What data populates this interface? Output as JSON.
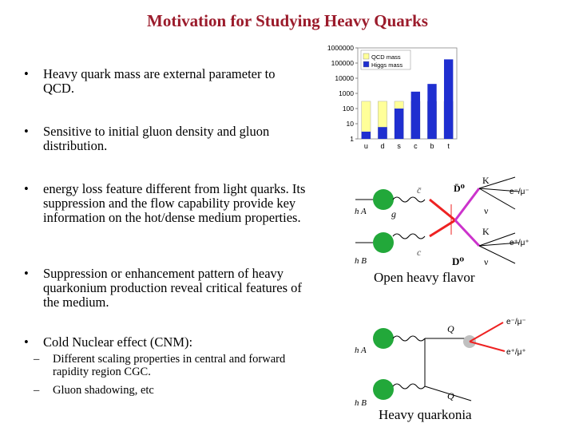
{
  "title": "Motivation for Studying Heavy Quarks",
  "bullets": [
    {
      "text": "Heavy quark mass are external parameter to QCD."
    },
    {
      "text": "Sensitive to initial gluon density and gluon distribution."
    },
    {
      "text": "energy loss feature different from light quarks. Its suppression and the flow capability provide key information on the hot/dense medium properties."
    },
    {
      "text": "Suppression or enhancement pattern of heavy quarkonium production reveal critical features of the medium."
    },
    {
      "text": "Cold Nuclear effect (CNM):"
    }
  ],
  "subbullets": [
    {
      "text": "Different scaling properties in central and forward rapidity region CGC."
    },
    {
      "text": "Gluon shadowing, etc"
    }
  ],
  "chart_data": {
    "type": "bar",
    "categories": [
      "u",
      "d",
      "s",
      "c",
      "b",
      "t"
    ],
    "series": [
      {
        "name": "QCD mass",
        "color": "#ffff99",
        "values": [
          300,
          300,
          300,
          300,
          300,
          300
        ]
      },
      {
        "name": "Higgs mass",
        "color": "#1f2fd0",
        "values": [
          3,
          6,
          100,
          1300,
          4200,
          175000
        ]
      }
    ],
    "yscale": "log",
    "ylim": [
      1,
      1000000
    ],
    "yticks": [
      "1000000",
      "100000",
      "10000",
      "1000",
      "100",
      "10",
      "1"
    ],
    "legend_position": "top-left"
  },
  "diagram1": {
    "labels": {
      "hA": "h A",
      "hB": "h B",
      "g": "g",
      "cbar": "c̄",
      "c": "c",
      "K_top": "K",
      "K_bot": "K",
      "nu_top": "ν",
      "nu_bot": "ν",
      "e_minus": "e⁻/μ⁻",
      "e_plus": "e⁺/μ⁺",
      "Dbar": "D̄⁰",
      "D0": "D⁰",
      "plus": "+"
    },
    "caption": "Open heavy flavor"
  },
  "diagram2": {
    "labels": {
      "hA": "h A",
      "hB": "h B",
      "Q_top": "Q",
      "Q_bot": "Q",
      "e_minus": "e⁻/μ⁻",
      "e_plus": "e⁺/μ⁺"
    },
    "caption": "Heavy quarkonia"
  },
  "colors": {
    "title": "#9b1b2b",
    "hadron": "#22a83a",
    "red": "#ee2222",
    "magenta": "#cc33cc",
    "gray_blob": "#c0c0c0"
  }
}
